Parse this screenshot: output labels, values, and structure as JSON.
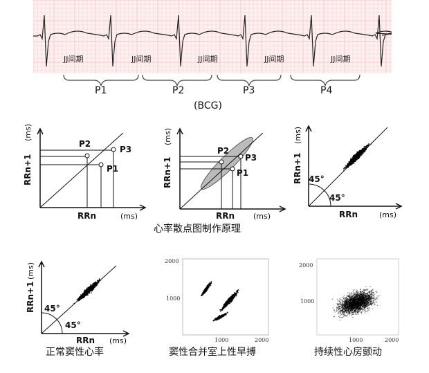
{
  "ecg": {
    "caption": "(BCG)",
    "jj_labels": [
      "JJ间期",
      "JJ间期",
      "JJ间期",
      "JJ间期",
      "JJ间期"
    ],
    "periods": [
      "P1",
      "P2",
      "P3",
      "P4"
    ]
  },
  "principle": {
    "caption": "心率散点图制作原理",
    "panel1": {
      "ylabel": "RRn+1",
      "yunit": "(ms)",
      "xlabel": "RRn",
      "xunit": "(ms)",
      "points": [
        "P2",
        "P3",
        "P1"
      ]
    },
    "panel2": {
      "ylabel": "RRn+1",
      "yunit": "(ms)",
      "xlabel": "RRn",
      "xunit": "(ms)",
      "points": [
        "P2",
        "P3",
        "P1"
      ]
    },
    "panel3": {
      "ylabel": "RRn+1",
      "yunit": "(ms)",
      "xlabel": "RRn",
      "xunit": "(ms)",
      "angle1": "45°",
      "angle2": "45°"
    }
  },
  "examples": {
    "normal": {
      "caption": "正常窦性心率",
      "ylabel": "RRn+1",
      "yunit": "(ms)",
      "xlabel": "RRn",
      "xunit": "(ms)",
      "angle1": "45°",
      "angle2": "45°"
    },
    "pac": {
      "caption": "窦性合并室上性早搏",
      "ticks_y": [
        "2000",
        "1000"
      ],
      "ticks_x": [
        "1000",
        "2000"
      ]
    },
    "af": {
      "caption": "持续性心房颤动",
      "ticks_y": [
        "2000",
        "1000"
      ],
      "ticks_x": [
        "1000",
        "2000"
      ]
    }
  }
}
